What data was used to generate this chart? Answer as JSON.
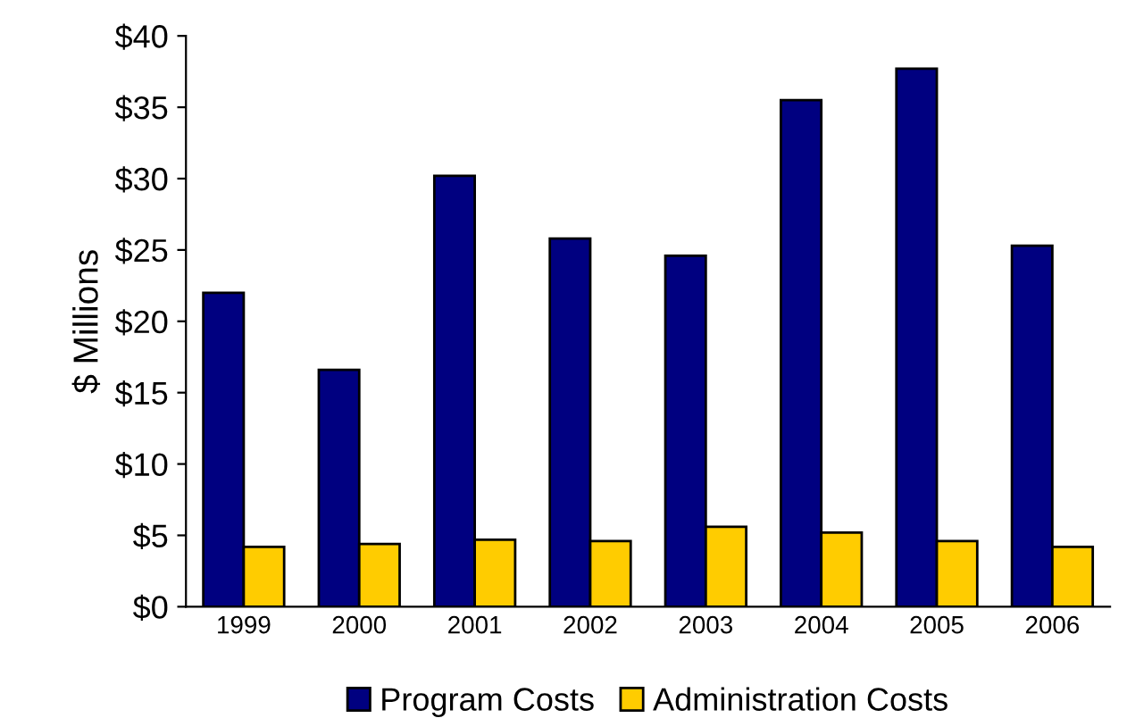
{
  "chart_data": {
    "type": "bar",
    "ylabel": "$ Millions",
    "categories": [
      "1999",
      "2000",
      "2001",
      "2002",
      "2003",
      "2004",
      "2005",
      "2006"
    ],
    "series": [
      {
        "name": "Program Costs",
        "color": "#000080",
        "values": [
          22.0,
          16.6,
          30.2,
          25.8,
          24.6,
          35.5,
          37.7,
          25.3
        ]
      },
      {
        "name": "Administration Costs",
        "color": "#ffcc00",
        "values": [
          4.2,
          4.4,
          4.7,
          4.6,
          5.6,
          5.2,
          4.6,
          4.2
        ]
      }
    ],
    "ylim": [
      0,
      40
    ],
    "yticks": [
      {
        "value": 0,
        "label": "$0"
      },
      {
        "value": 5,
        "label": "$5"
      },
      {
        "value": 10,
        "label": "$10"
      },
      {
        "value": 15,
        "label": "$15"
      },
      {
        "value": 20,
        "label": "$20"
      },
      {
        "value": 25,
        "label": "$25"
      },
      {
        "value": 30,
        "label": "$30"
      },
      {
        "value": 35,
        "label": "$35"
      },
      {
        "value": 40,
        "label": "$40"
      }
    ],
    "grid": false,
    "legend": "bottom"
  }
}
